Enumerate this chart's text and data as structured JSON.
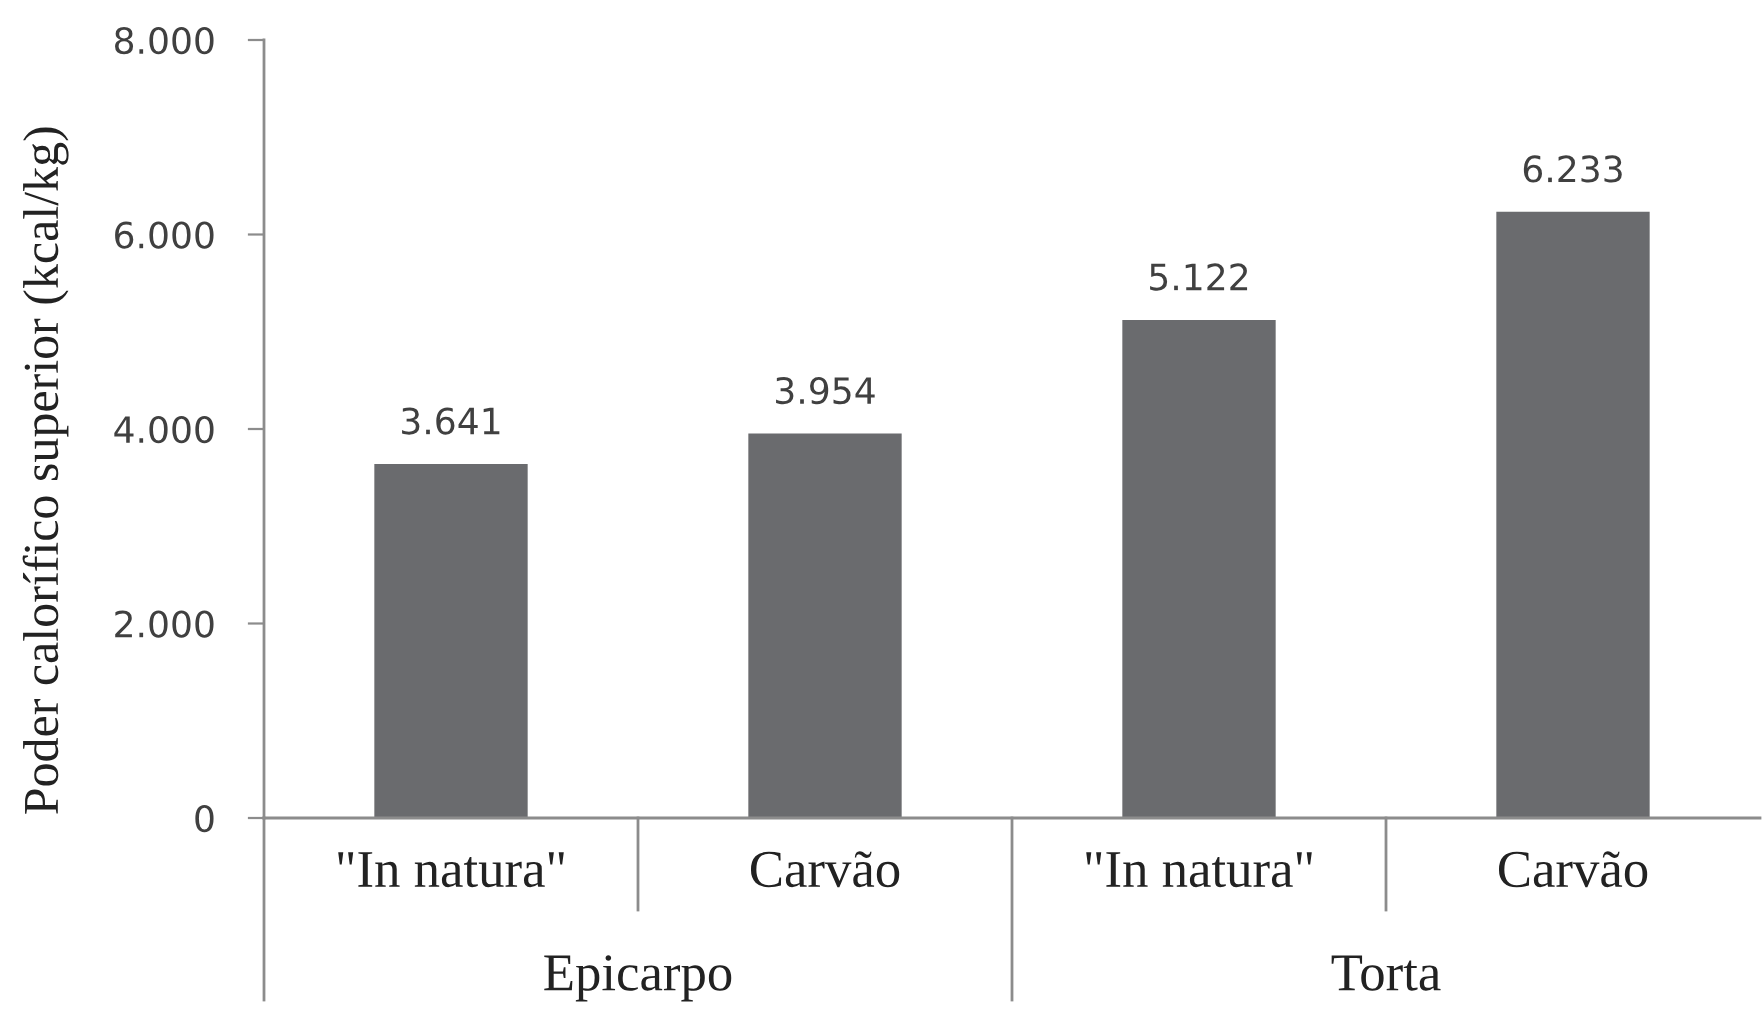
{
  "chart_data": {
    "type": "bar",
    "ylabel": "Poder calorífico superior (kcal/kg)",
    "categories": [
      "\"In natura\"",
      "Carvão",
      "\"In natura\"",
      "Carvão"
    ],
    "values": [
      3641,
      3954,
      5122,
      6233
    ],
    "value_labels": [
      "3.641",
      "3.954",
      "5.122",
      "6.233"
    ],
    "color": "#6a6b6e",
    "ylim": [
      0,
      8000
    ],
    "yticks": [
      0,
      {
        "value": 2000,
        "label": "2.000"
      },
      {
        "value": 4000,
        "label": "4.000"
      },
      {
        "value": 6000,
        "label": "6.000"
      },
      {
        "value": 8000,
        "label": "8.000"
      }
    ],
    "annotations": [
      "Epicarpo",
      "Torta"
    ],
    "grid": false,
    "legend": false
  }
}
